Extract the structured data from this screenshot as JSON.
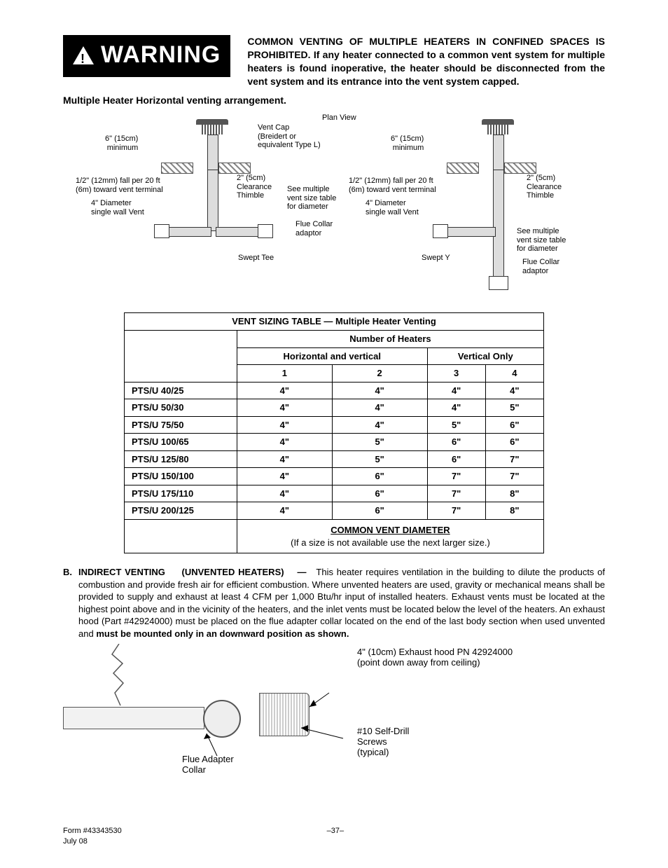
{
  "warning": {
    "label": "WARNING"
  },
  "topText": {
    "bold1": "COMMON VENTING OF MULTIPLE HEATERS IN CONFINED SPACES IS PROHIBITED.",
    "rest": "If any heater connected to a common vent system for multiple heaters is found inoperative, the heater should be disconnected from the vent system and its entrance into the vent system capped."
  },
  "arrangementTitle": "Multiple Heater Horizontal venting arrangement.",
  "diagram": {
    "planView": "Plan View",
    "ventCap": "Vent Cap\n(Breidert or\nequivalent Type L)",
    "sixInchMin": "6\" (15cm)\nminimum",
    "fall": "1/2\" (12mm) fall per 20 ft\n(6m) toward vent terminal",
    "fourDia": "4\" Diameter\nsingle wall Vent",
    "twoInch": "2\" (5cm)\nClearance\nThimble",
    "seeTable": "See multiple\nvent size table\nfor diameter",
    "flueCollar": "Flue Collar\nadaptor",
    "sweptTee": "Swept Tee",
    "sweptY": "Swept Y"
  },
  "table": {
    "title": "VENT SIZING TABLE  —  Multiple Heater Venting",
    "numHeaters": "Number of Heaters",
    "horizVert": "Horizontal and vertical",
    "vertOnly": "Vertical Only",
    "cols": {
      "c1": "1",
      "c2": "2",
      "c3": "3",
      "c4": "4"
    },
    "rows": [
      {
        "model": "PTS/U 40/25",
        "v": [
          "4\"",
          "4\"",
          "4\"",
          "4\""
        ]
      },
      {
        "model": "PTS/U 50/30",
        "v": [
          "4\"",
          "4\"",
          "4\"",
          "5\""
        ]
      },
      {
        "model": "PTS/U 75/50",
        "v": [
          "4\"",
          "4\"",
          "5\"",
          "6\""
        ]
      },
      {
        "model": "PTS/U 100/65",
        "v": [
          "4\"",
          "5\"",
          "6\"",
          "6\""
        ]
      },
      {
        "model": "PTS/U 125/80",
        "v": [
          "4\"",
          "5\"",
          "6\"",
          "7\""
        ]
      },
      {
        "model": "PTS/U 150/100",
        "v": [
          "4\"",
          "6\"",
          "7\"",
          "7\""
        ]
      },
      {
        "model": "PTS/U 175/110",
        "v": [
          "4\"",
          "6\"",
          "7\"",
          "8\""
        ]
      },
      {
        "model": "PTS/U 200/125",
        "v": [
          "4\"",
          "6\"",
          "7\"",
          "8\""
        ]
      }
    ],
    "cvdTitle": "COMMON VENT DIAMETER",
    "cvdNote": "(If a size is not available use the next larger size.)"
  },
  "sectionB": {
    "letter": "B.",
    "title": "INDIRECT VENTING",
    "paren": "(UNVENTED HEATERS)",
    "dash": "—",
    "body1": "This heater requires ventilation in the building to dilute the products of combustion and provide fresh air for efficient combustion.  Where unvented heaters are used, gravity or mechanical means shall be provided to supply and exhaust at least 4 CFM per 1,000 Btu/hr input of installed heaters.  Exhaust vents must be located at the highest point above and in the vicinity of the heaters, and the inlet vents must be located below the level of the heaters.  An exhaust hood (Part #42924000) must be placed on the flue adapter collar located on the end of the last body section when used unvented and ",
    "bold2": "must be mounted only in an downward position as shown."
  },
  "diagram2": {
    "exhaustHood": "4\" (10cm) Exhaust hood PN 42924000\n(point down away from ceiling)",
    "screws": "#10 Self-Drill\nScrews\n(typical)",
    "flueAdapter": "Flue Adapter\nCollar"
  },
  "footer": {
    "form": "Form #43343530",
    "date": "July 08",
    "page": "–37–"
  }
}
